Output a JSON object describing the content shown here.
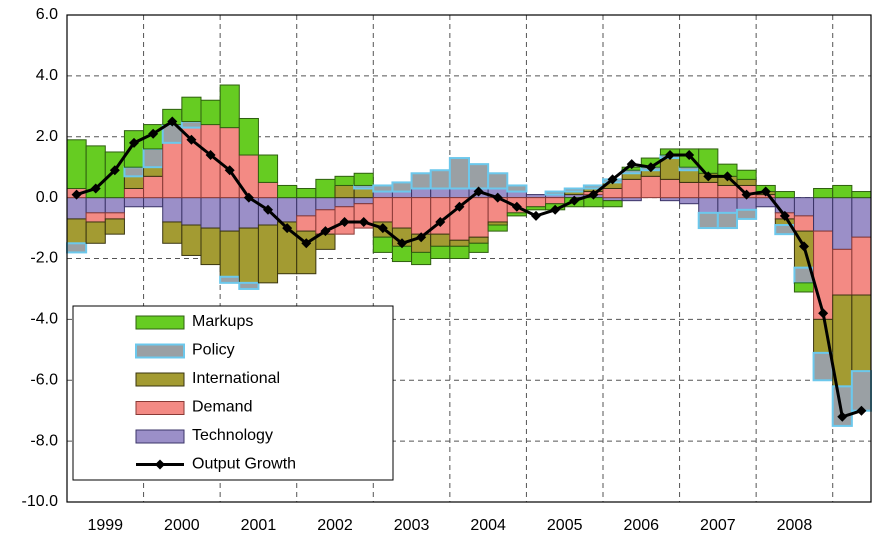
{
  "chart_data": {
    "type": "stacked-bar-line",
    "categories": [
      "1999",
      null,
      null,
      null,
      "2000",
      null,
      null,
      null,
      "2001",
      null,
      null,
      null,
      "2002",
      null,
      null,
      null,
      "2003",
      null,
      null,
      null,
      "2004",
      null,
      null,
      null,
      "2005",
      null,
      null,
      null,
      "2006",
      null,
      null,
      null,
      "2007",
      null,
      null,
      null,
      "2008",
      null,
      null,
      null,
      null,
      null
    ],
    "ylim": [
      -10,
      6
    ],
    "yticks": [
      {
        "value": -10,
        "label": "-10.0"
      },
      {
        "value": -8,
        "label": "-8.0"
      },
      {
        "value": -6,
        "label": "-6.0"
      },
      {
        "value": -4,
        "label": "-4.0"
      },
      {
        "value": -2,
        "label": "-2.0"
      },
      {
        "value": 0,
        "label": "0.0"
      },
      {
        "value": 2,
        "label": "2.0"
      },
      {
        "value": 4,
        "label": "4.0"
      },
      {
        "value": 6,
        "label": "6.0"
      }
    ],
    "grid": true,
    "legend": "lower-left",
    "series": [
      {
        "name": "Markups",
        "color": "#66cc22",
        "edge": "#2f5f10",
        "values": [
          1.6,
          1.7,
          1.5,
          1.2,
          0.8,
          0.5,
          0.8,
          0.8,
          1.4,
          1.2,
          0.9,
          0.4,
          0.3,
          0.6,
          0.3,
          0.4,
          -0.5,
          -0.5,
          -0.4,
          -0.4,
          -0.4,
          -0.3,
          -0.2,
          -0.1,
          -0.1,
          -0.2,
          -0.3,
          -0.3,
          -0.2,
          0.1,
          0.3,
          0.2,
          0.6,
          0.8,
          0.4,
          0.3,
          0.2,
          0.2,
          -0.3,
          0.3,
          0.4,
          0.2
        ]
      },
      {
        "name": "Policy",
        "color": "#9aa0a4",
        "edge": "#6cc8ec",
        "values": [
          -0.3,
          0,
          0,
          0.3,
          0.6,
          0.6,
          0.2,
          0,
          -0.2,
          -0.2,
          0,
          0,
          0,
          0,
          0,
          0.1,
          0.2,
          0.3,
          0.5,
          0.6,
          1.0,
          0.8,
          0.5,
          0.2,
          0,
          0.1,
          0.1,
          0.1,
          0.1,
          0.1,
          0.1,
          0.1,
          0.1,
          -0.5,
          -0.5,
          -0.3,
          0,
          -0.3,
          -0.5,
          -0.9,
          -1.3,
          -1.3
        ]
      },
      {
        "name": "International",
        "color": "#a39b32",
        "edge": "#3a3510",
        "values": [
          -0.8,
          -0.7,
          -0.5,
          0.4,
          0.3,
          -0.7,
          -1.0,
          -1.2,
          -1.5,
          -1.8,
          -1.9,
          -1.7,
          -1.4,
          -0.5,
          0.4,
          0.3,
          -0.5,
          -0.6,
          -0.6,
          -0.4,
          -0.2,
          -0.2,
          -0.1,
          0,
          0,
          0,
          0.1,
          0.1,
          0.2,
          0.2,
          0.2,
          0.7,
          0.4,
          0.3,
          0.3,
          0.2,
          0.1,
          -0.2,
          -1.2,
          -1.1,
          -3.0,
          -2.5
        ]
      },
      {
        "name": "Demand",
        "color": "#f38a84",
        "edge": "#8a3a36",
        "values": [
          0.3,
          -0.3,
          -0.2,
          0.3,
          0.7,
          1.8,
          2.3,
          2.4,
          2.3,
          1.4,
          0.5,
          0,
          -0.5,
          -0.8,
          -0.9,
          -0.8,
          -0.8,
          -1.0,
          -1.2,
          -1.2,
          -1.4,
          -1.3,
          -0.8,
          -0.5,
          -0.3,
          -0.2,
          0,
          0.1,
          0.3,
          0.6,
          0.7,
          0.6,
          0.5,
          0.5,
          0.4,
          0.4,
          0.1,
          -0.2,
          -0.5,
          -2.9,
          -1.5,
          -1.9
        ]
      },
      {
        "name": "Technology",
        "color": "#9b8fc8",
        "edge": "#3b3468",
        "values": [
          -0.7,
          -0.5,
          -0.5,
          -0.3,
          -0.3,
          -0.8,
          -0.9,
          -1.0,
          -1.1,
          -1.0,
          -0.9,
          -0.8,
          -0.6,
          -0.4,
          -0.3,
          -0.2,
          0.2,
          0.2,
          0.3,
          0.3,
          0.3,
          0.3,
          0.3,
          0.2,
          0.1,
          0.1,
          0.1,
          0.1,
          -0.1,
          -0.1,
          0,
          -0.1,
          -0.2,
          -0.5,
          -0.5,
          -0.4,
          -0.3,
          -0.5,
          -0.6,
          -1.1,
          -1.7,
          -1.3
        ]
      }
    ],
    "line": {
      "name": "Output Growth",
      "color": "#000000",
      "values": [
        0.1,
        0.3,
        0.9,
        1.8,
        2.1,
        2.5,
        1.9,
        1.4,
        0.9,
        0,
        -0.4,
        -1.0,
        -1.5,
        -1.1,
        -0.8,
        -0.8,
        -1.0,
        -1.5,
        -1.3,
        -0.8,
        -0.3,
        0.2,
        0,
        -0.3,
        -0.6,
        -0.4,
        -0.1,
        0.1,
        0.6,
        1.1,
        1.0,
        1.4,
        1.4,
        0.7,
        0.7,
        0.1,
        0.2,
        -0.6,
        -1.6,
        -3.8,
        -7.2,
        -7.0
      ]
    }
  }
}
